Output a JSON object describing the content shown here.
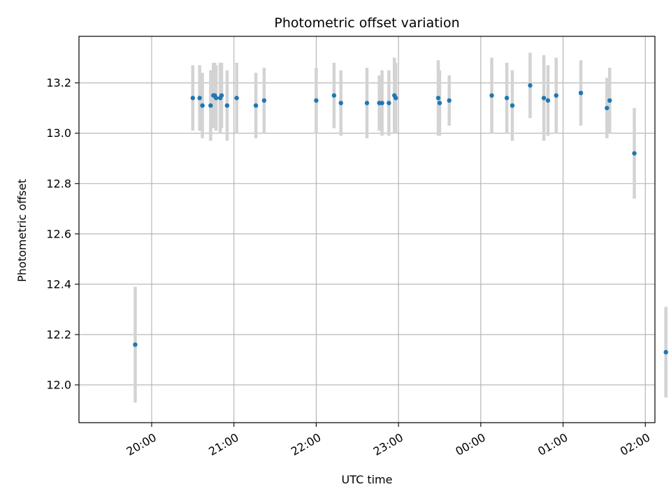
{
  "chart_data": {
    "type": "scatter",
    "title": "Photometric offset variation",
    "xlabel": "UTC time",
    "ylabel": "Photometric offset",
    "x_ticks": [
      "20:00",
      "21:00",
      "22:00",
      "23:00",
      "00:00",
      "01:00",
      "02:00"
    ],
    "y_ticks": [
      "12.0",
      "12.2",
      "12.4",
      "12.6",
      "12.8",
      "13.0",
      "13.2"
    ],
    "xlim_minutes_from_20h": [
      -53,
      367
    ],
    "ylim": [
      11.85,
      13.385
    ],
    "grid": true,
    "colors": {
      "point": "#1f77b4",
      "errorbar": "#d3d3d3",
      "grid": "#b0b0b0"
    },
    "points": [
      {
        "x": "19:48",
        "y": 12.16,
        "yerr": 0.23
      },
      {
        "x": "20:30",
        "y": 13.14,
        "yerr": 0.13
      },
      {
        "x": "20:35",
        "y": 13.14,
        "yerr": 0.13
      },
      {
        "x": "20:37",
        "y": 13.11,
        "yerr": 0.13
      },
      {
        "x": "20:43",
        "y": 13.11,
        "yerr": 0.14
      },
      {
        "x": "20:45",
        "y": 13.15,
        "yerr": 0.13
      },
      {
        "x": "20:46",
        "y": 13.15,
        "yerr": 0.13
      },
      {
        "x": "20:47",
        "y": 13.14,
        "yerr": 0.13
      },
      {
        "x": "20:50",
        "y": 13.14,
        "yerr": 0.14
      },
      {
        "x": "20:51",
        "y": 13.15,
        "yerr": 0.13
      },
      {
        "x": "20:55",
        "y": 13.11,
        "yerr": 0.14
      },
      {
        "x": "21:02",
        "y": 13.14,
        "yerr": 0.14
      },
      {
        "x": "21:16",
        "y": 13.11,
        "yerr": 0.13
      },
      {
        "x": "21:22",
        "y": 13.13,
        "yerr": 0.13
      },
      {
        "x": "22:00",
        "y": 13.13,
        "yerr": 0.13
      },
      {
        "x": "22:13",
        "y": 13.15,
        "yerr": 0.13
      },
      {
        "x": "22:18",
        "y": 13.12,
        "yerr": 0.13
      },
      {
        "x": "22:37",
        "y": 13.12,
        "yerr": 0.14
      },
      {
        "x": "22:46",
        "y": 13.12,
        "yerr": 0.11
      },
      {
        "x": "22:48",
        "y": 13.12,
        "yerr": 0.13
      },
      {
        "x": "22:53",
        "y": 13.12,
        "yerr": 0.13
      },
      {
        "x": "22:57",
        "y": 13.15,
        "yerr": 0.15
      },
      {
        "x": "22:58",
        "y": 13.14,
        "yerr": 0.14
      },
      {
        "x": "23:29",
        "y": 13.14,
        "yerr": 0.15
      },
      {
        "x": "23:30",
        "y": 13.12,
        "yerr": 0.13
      },
      {
        "x": "23:37",
        "y": 13.13,
        "yerr": 0.1
      },
      {
        "x": "00:08",
        "y": 13.15,
        "yerr": 0.15
      },
      {
        "x": "00:19",
        "y": 13.14,
        "yerr": 0.14
      },
      {
        "x": "00:23",
        "y": 13.11,
        "yerr": 0.14
      },
      {
        "x": "00:36",
        "y": 13.19,
        "yerr": 0.13
      },
      {
        "x": "00:46",
        "y": 13.14,
        "yerr": 0.17
      },
      {
        "x": "00:49",
        "y": 13.13,
        "yerr": 0.14
      },
      {
        "x": "00:55",
        "y": 13.15,
        "yerr": 0.15
      },
      {
        "x": "01:13",
        "y": 13.16,
        "yerr": 0.13
      },
      {
        "x": "01:32",
        "y": 13.1,
        "yerr": 0.12
      },
      {
        "x": "01:34",
        "y": 13.13,
        "yerr": 0.13
      },
      {
        "x": "01:52",
        "y": 12.92,
        "yerr": 0.18
      },
      {
        "x": "02:15",
        "y": 12.13,
        "yerr": 0.18
      }
    ]
  }
}
